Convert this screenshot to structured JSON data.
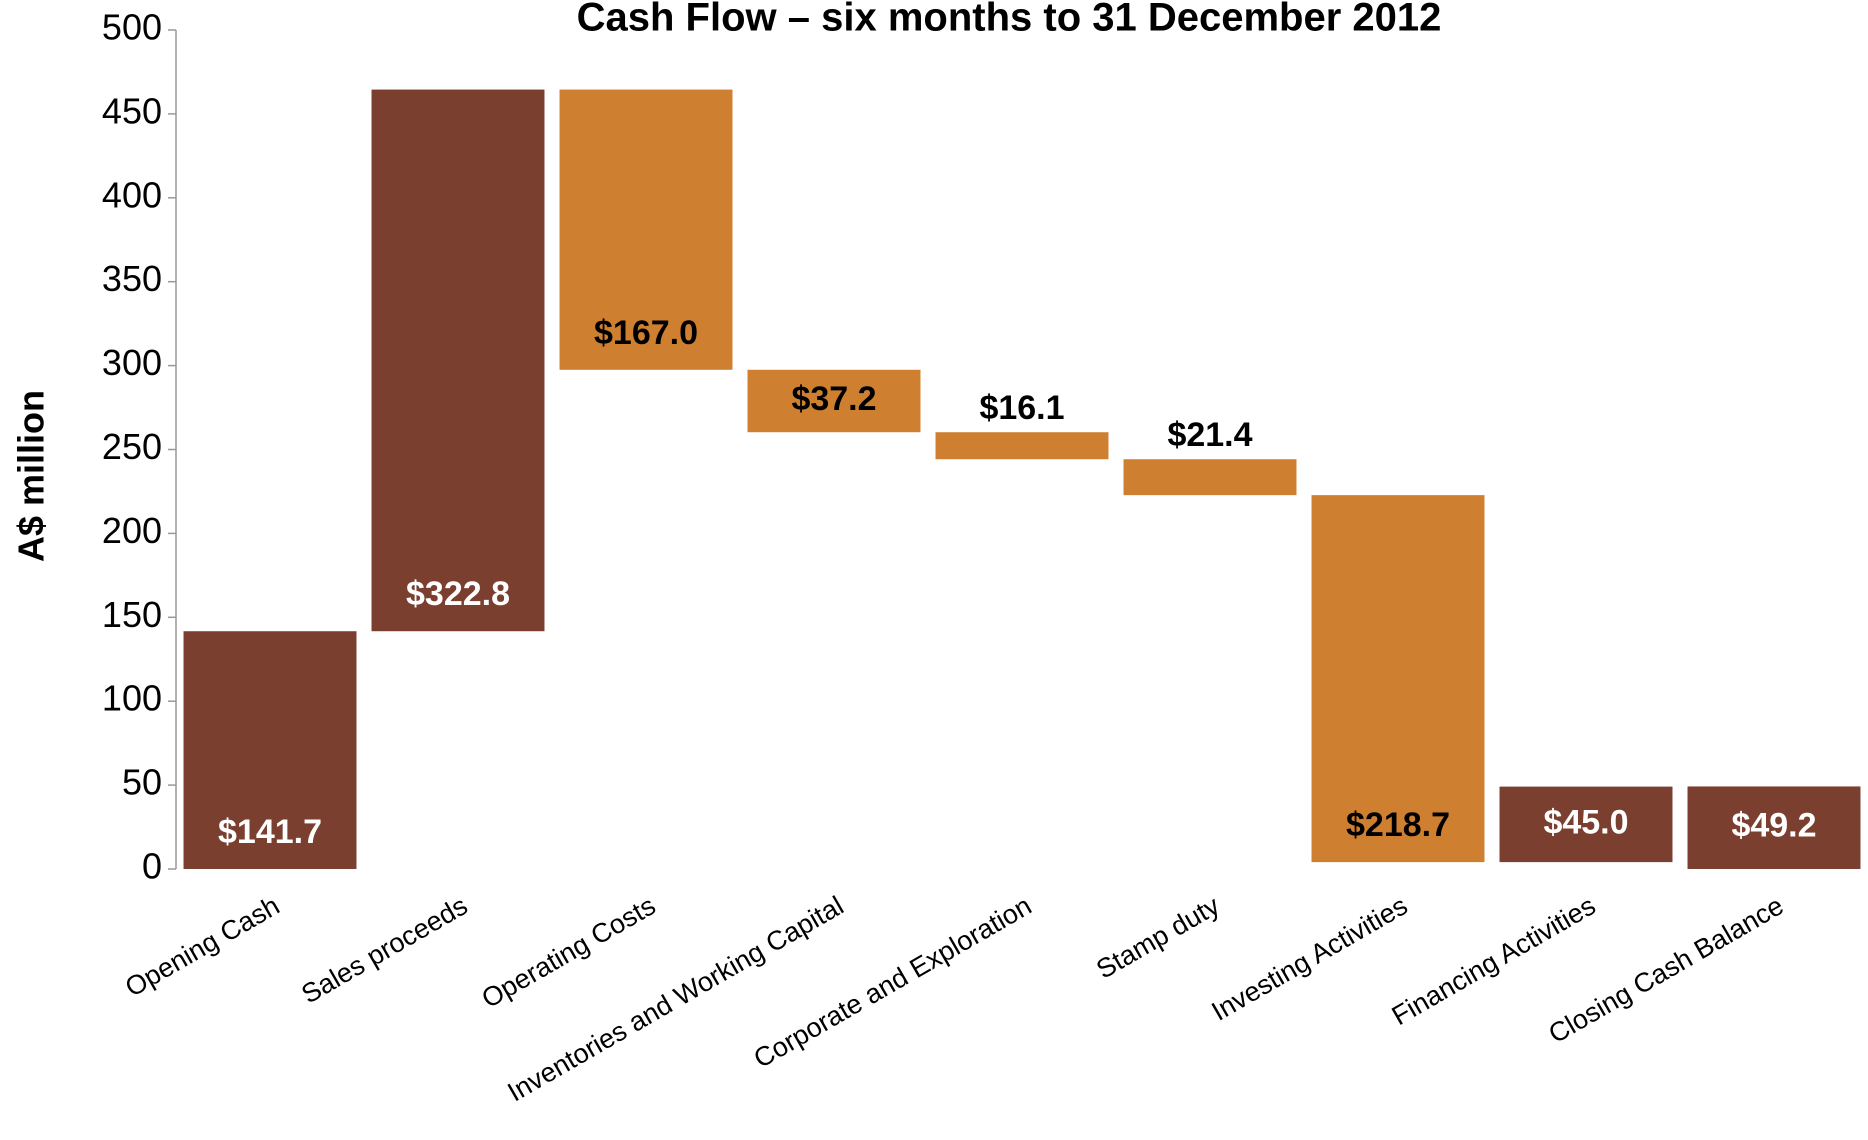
{
  "chart_data": {
    "type": "waterfall",
    "title": "Cash Flow – six months to 31 December 2012",
    "y_label": "A$ million",
    "categories": [
      "Opening Cash",
      "Sales proceeds",
      "Operating Costs",
      "Inventories and Working Capital",
      "Corporate and Exploration",
      "Stamp duty",
      "Investing Activities",
      "Financing Activities",
      "Closing Cash Balance"
    ],
    "values": [
      141.7,
      322.8,
      -167.0,
      -37.2,
      -16.1,
      -21.4,
      -218.7,
      45.0,
      49.2
    ],
    "value_labels": [
      "$141.7",
      "$322.8",
      "$167.0",
      "$37.2",
      "$16.1",
      "$21.4",
      "$218.7",
      "$45.0",
      "$49.2"
    ],
    "colors": [
      "#7b3f30",
      "#7b3f30",
      "#cf7f30",
      "#cf7f30",
      "#cf7f30",
      "#cf7f30",
      "#cf7f30",
      "#7b3f30",
      "#7b3f30"
    ],
    "ylim": [
      0,
      500
    ],
    "yticks": [
      0,
      50,
      100,
      150,
      200,
      250,
      300,
      350,
      400,
      450,
      500
    ],
    "grid": false
  }
}
